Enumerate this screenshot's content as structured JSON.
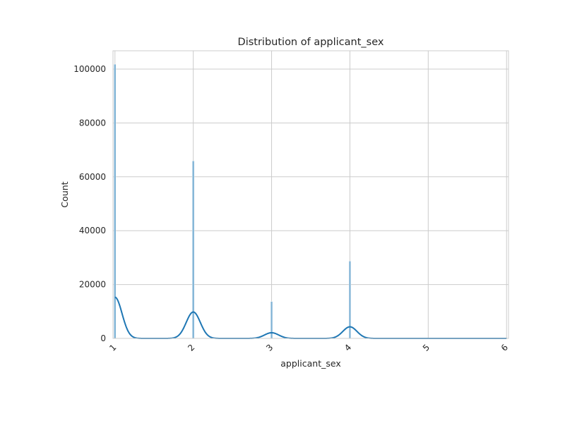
{
  "chart_data": {
    "type": "bar",
    "title": "Distribution of applicant_sex",
    "xlabel": "applicant_sex",
    "ylabel": "Count",
    "xlim": [
      0.975,
      6.025
    ],
    "ylim": [
      0,
      106800
    ],
    "x_ticks": [
      "1",
      "2",
      "3",
      "4",
      "5",
      "6"
    ],
    "y_ticks": [
      "0",
      "20000",
      "40000",
      "60000",
      "80000",
      "100000"
    ],
    "grid": true,
    "legend": "none",
    "series": [
      {
        "kind": "histogram",
        "bin_width": 0.025,
        "bars": [
          {
            "x": 1,
            "count": 101800
          },
          {
            "x": 2,
            "count": 65900
          },
          {
            "x": 3,
            "count": 13700
          },
          {
            "x": 4,
            "count": 28700
          },
          {
            "x": 5,
            "count": 0
          },
          {
            "x": 6,
            "count": 0
          }
        ]
      },
      {
        "kind": "kde",
        "peaks": [
          {
            "x": 1,
            "height": 15300
          },
          {
            "x": 2,
            "height": 9800
          },
          {
            "x": 3,
            "height": 2100
          },
          {
            "x": 4,
            "height": 4300
          }
        ],
        "bandwidth": 0.09
      }
    ],
    "colors": {
      "bar": "#7fb3d5",
      "kde": "#1f77b4",
      "grid": "#cccccc",
      "spine": "#cccccc",
      "text": "#262626"
    }
  }
}
